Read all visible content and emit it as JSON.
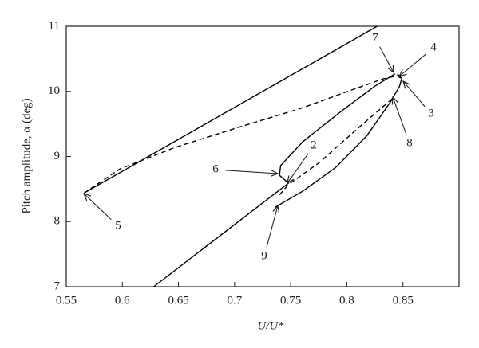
{
  "chart_data": {
    "type": "line",
    "xlabel": "U/U*",
    "ylabel": "Pitch amplitude, α (deg)",
    "xlim": [
      0.55,
      0.9
    ],
    "ylim": [
      7,
      11
    ],
    "xticks": [
      0.55,
      0.6,
      0.65,
      0.7,
      0.75,
      0.8,
      0.85
    ],
    "yticks": [
      7,
      8,
      9,
      10,
      11
    ],
    "series": [
      {
        "color": "#000",
        "style": "solid",
        "x": [
          0.566,
          0.827
        ],
        "values": [
          8.44,
          11
        ]
      },
      {
        "color": "#000",
        "style": "solid",
        "x": [
          0.628,
          0.748,
          0.74,
          0.741,
          0.761,
          0.797,
          0.825,
          0.843
        ],
        "values": [
          7.0,
          8.59,
          8.71,
          8.86,
          9.23,
          9.72,
          10.08,
          10.27
        ]
      },
      {
        "color": "#000",
        "style": "solid",
        "x": [
          0.736,
          0.761,
          0.79,
          0.818,
          0.839,
          0.847,
          0.849,
          0.845
        ],
        "values": [
          8.22,
          8.47,
          8.83,
          9.32,
          9.84,
          10.08,
          10.2,
          10.27
        ]
      },
      {
        "color": "#000",
        "style": "dashed",
        "x": [
          0.566,
          0.598,
          0.647,
          0.704,
          0.761,
          0.804,
          0.832,
          0.845,
          0.85
        ],
        "values": [
          8.44,
          8.81,
          9.14,
          9.45,
          9.75,
          10.02,
          10.19,
          10.24,
          10.18
        ]
      },
      {
        "color": "#000",
        "style": "dashed",
        "x": [
          0.74,
          0.748,
          0.775,
          0.811,
          0.842
        ],
        "values": [
          8.41,
          8.57,
          8.9,
          9.45,
          9.91
        ]
      }
    ],
    "annotations": [
      "2",
      "3",
      "4",
      "5",
      "6",
      "7",
      "8",
      "9"
    ]
  }
}
